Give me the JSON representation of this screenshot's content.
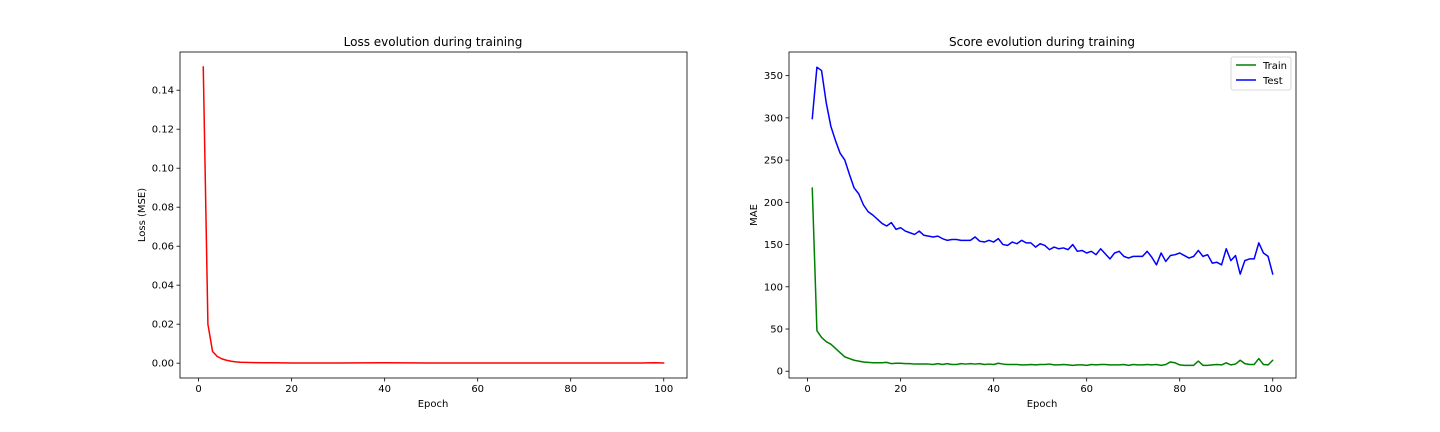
{
  "chart_data": [
    {
      "type": "line",
      "title": "Loss evolution during training",
      "xlabel": "Epoch",
      "ylabel": "Loss (MSE)",
      "xlim": [
        -4,
        105
      ],
      "ylim": [
        -0.0076,
        0.1596
      ],
      "xticks": [
        0,
        20,
        40,
        60,
        80,
        100
      ],
      "xtick_labels": [
        "0",
        "20",
        "40",
        "60",
        "80",
        "100"
      ],
      "yticks": [
        0.0,
        0.02,
        0.04,
        0.06,
        0.08,
        0.1,
        0.12,
        0.14
      ],
      "ytick_labels": [
        "0.00",
        "0.02",
        "0.04",
        "0.06",
        "0.08",
        "0.10",
        "0.12",
        "0.14"
      ],
      "grid": false,
      "legend": "none",
      "series": [
        {
          "color": "#ff0000",
          "x": [
            1,
            2,
            3,
            4,
            5,
            6,
            7,
            8,
            9,
            10,
            12,
            14,
            16,
            20,
            30,
            40,
            50,
            60,
            70,
            80,
            90,
            95,
            98,
            100
          ],
          "y": [
            0.152,
            0.02,
            0.006,
            0.0035,
            0.0022,
            0.0015,
            0.001,
            0.0007,
            0.0005,
            0.0004,
            0.0003,
            0.0002,
            0.0002,
            0.0001,
            0.0001,
            0.0002,
            0.0001,
            0.0001,
            0.0001,
            0.0001,
            0.0001,
            0.0001,
            0.0002,
            0.0001
          ]
        }
      ]
    },
    {
      "type": "line",
      "title": "Score evolution during training",
      "xlabel": "Epoch",
      "ylabel": "MAE",
      "xlim": [
        -4,
        105
      ],
      "ylim": [
        -8,
        378
      ],
      "xticks": [
        0,
        20,
        40,
        60,
        80,
        100
      ],
      "xtick_labels": [
        "0",
        "20",
        "40",
        "60",
        "80",
        "100"
      ],
      "yticks": [
        0,
        50,
        100,
        150,
        200,
        250,
        300,
        350
      ],
      "ytick_labels": [
        "0",
        "50",
        "100",
        "150",
        "200",
        "250",
        "300",
        "350"
      ],
      "grid": false,
      "legend": "top-right",
      "series": [
        {
          "name": "Train",
          "color": "#008000",
          "x": [
            1,
            2,
            3,
            4,
            5,
            6,
            7,
            8,
            9,
            10,
            11,
            12,
            13,
            14,
            15,
            16,
            17,
            18,
            19,
            20,
            21,
            22,
            23,
            24,
            25,
            26,
            27,
            28,
            29,
            30,
            31,
            32,
            33,
            34,
            35,
            36,
            37,
            38,
            39,
            40,
            41,
            42,
            43,
            44,
            45,
            46,
            47,
            48,
            49,
            50,
            51,
            52,
            53,
            54,
            55,
            56,
            57,
            58,
            59,
            60,
            61,
            62,
            63,
            64,
            65,
            66,
            67,
            68,
            69,
            70,
            71,
            72,
            73,
            74,
            75,
            76,
            77,
            78,
            79,
            80,
            81,
            82,
            83,
            84,
            85,
            86,
            87,
            88,
            89,
            90,
            91,
            92,
            93,
            94,
            95,
            96,
            97,
            98,
            99,
            100
          ],
          "y": [
            217,
            48,
            40,
            35,
            32,
            27,
            22,
            17,
            15,
            13,
            12,
            11,
            10.5,
            10,
            10,
            10,
            10.5,
            9,
            9.5,
            9.5,
            9,
            9,
            8.5,
            8.5,
            8.5,
            8.5,
            8,
            9,
            8,
            9,
            8,
            8,
            9,
            8.5,
            9,
            8.5,
            9,
            8,
            8.5,
            8,
            9.5,
            8.5,
            8,
            8,
            8,
            7.5,
            7.5,
            8,
            7.5,
            8,
            8,
            8.5,
            7.5,
            7.5,
            8,
            7.5,
            7,
            7.5,
            7.5,
            7,
            8,
            7.5,
            8,
            8,
            7.5,
            7.5,
            7.5,
            8,
            7,
            8,
            7.5,
            7.5,
            8,
            7.5,
            8,
            7,
            8,
            11,
            10,
            7.5,
            7,
            7,
            7,
            12,
            7,
            7,
            7.5,
            8,
            7.5,
            10,
            7.5,
            8.5,
            13,
            9,
            8,
            8,
            15,
            8,
            7.5,
            13
          ]
        },
        {
          "name": "Test",
          "color": "#0000ff",
          "x": [
            1,
            2,
            3,
            4,
            5,
            6,
            7,
            8,
            9,
            10,
            11,
            12,
            13,
            14,
            15,
            16,
            17,
            18,
            19,
            20,
            21,
            22,
            23,
            24,
            25,
            26,
            27,
            28,
            29,
            30,
            31,
            32,
            33,
            34,
            35,
            36,
            37,
            38,
            39,
            40,
            41,
            42,
            43,
            44,
            45,
            46,
            47,
            48,
            49,
            50,
            51,
            52,
            53,
            54,
            55,
            56,
            57,
            58,
            59,
            60,
            61,
            62,
            63,
            64,
            65,
            66,
            67,
            68,
            69,
            70,
            71,
            72,
            73,
            74,
            75,
            76,
            77,
            78,
            79,
            80,
            81,
            82,
            83,
            84,
            85,
            86,
            87,
            88,
            89,
            90,
            91,
            92,
            93,
            94,
            95,
            96,
            97,
            98,
            99,
            100
          ],
          "y": [
            299,
            360,
            356,
            318,
            290,
            273,
            258,
            250,
            233,
            217,
            210,
            197,
            189,
            185,
            180,
            175,
            172,
            176,
            168,
            170,
            166,
            164,
            162,
            166,
            161,
            160,
            159,
            160,
            157,
            155,
            156,
            156,
            155,
            155,
            155,
            159,
            154,
            153,
            155,
            153,
            157,
            150,
            149,
            153,
            151,
            155,
            152,
            152,
            147,
            151,
            149,
            144,
            147,
            145,
            146,
            144,
            150,
            142,
            143,
            140,
            142,
            138,
            145,
            139,
            133,
            140,
            142,
            136,
            134,
            136,
            136,
            136,
            142,
            135,
            126,
            140,
            130,
            137,
            138,
            140,
            137,
            134,
            136,
            143,
            136,
            138,
            128,
            129,
            126,
            145,
            131,
            137,
            115,
            131,
            133,
            133,
            152,
            140,
            136,
            115
          ]
        }
      ]
    }
  ]
}
